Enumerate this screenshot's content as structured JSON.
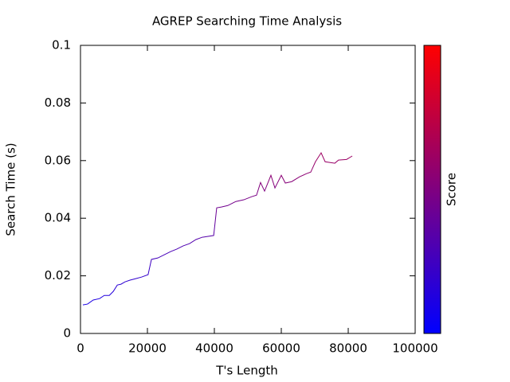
{
  "chart_data": {
    "type": "line",
    "title": "AGREP Searching Time Analysis",
    "x_label": "T's Length",
    "y_label": "Search Time (s)",
    "x": [
      700,
      2100,
      3800,
      5700,
      7100,
      8600,
      9800,
      11000,
      12100,
      13300,
      14800,
      16400,
      18300,
      20200,
      21200,
      23100,
      25000,
      26900,
      28800,
      30700,
      32600,
      34500,
      36400,
      39800,
      40700,
      42100,
      44000,
      46400,
      48800,
      51200,
      52600,
      53800,
      55000,
      56900,
      58100,
      60000,
      61200,
      63100,
      65500,
      67600,
      68800,
      70200,
      71900,
      73100,
      76000,
      77100,
      79500,
      81200
    ],
    "series": [
      {
        "values": [
          0.0099,
          0.0102,
          0.0116,
          0.0121,
          0.0132,
          0.0132,
          0.0146,
          0.0168,
          0.0171,
          0.0179,
          0.0185,
          0.019,
          0.0196,
          0.0204,
          0.0257,
          0.0262,
          0.0273,
          0.0284,
          0.0293,
          0.0304,
          0.0312,
          0.0326,
          0.0334,
          0.034,
          0.0436,
          0.0439,
          0.0444,
          0.0458,
          0.0464,
          0.0475,
          0.048,
          0.0524,
          0.0494,
          0.0549,
          0.0505,
          0.0549,
          0.0522,
          0.0527,
          0.0544,
          0.0555,
          0.056,
          0.0596,
          0.0627,
          0.0596,
          0.0591,
          0.0602,
          0.0604,
          0.0616
        ]
      }
    ],
    "xlim": [
      0,
      100000
    ],
    "xticks": [
      0,
      20000,
      40000,
      60000,
      80000,
      100000
    ],
    "ylim": [
      0,
      0.1
    ],
    "yticks": [
      0,
      0.02,
      0.04,
      0.06,
      0.08,
      0.1
    ],
    "colorbar": {
      "label": "Score",
      "colors": [
        "#0000ff",
        "#ff0000"
      ]
    }
  }
}
